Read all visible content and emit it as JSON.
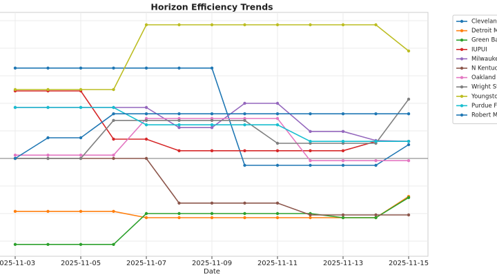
{
  "chart_data": {
    "type": "line",
    "title": "Horizon Efficiency Trends",
    "xlabel": "Date",
    "x": [
      "2025-11-03",
      "2025-11-04",
      "2025-11-05",
      "2025-11-06",
      "2025-11-07",
      "2025-11-08",
      "2025-11-09",
      "2025-11-10",
      "2025-11-11",
      "2025-11-12",
      "2025-11-13",
      "2025-11-14",
      "2025-11-15"
    ],
    "xlim": [
      "2025-11-03",
      "2025-11-15"
    ],
    "xticks": [
      "2025-11-03",
      "2025-11-05",
      "2025-11-07",
      "2025-11-09",
      "2025-11-11",
      "2025-11-13",
      "2025-11-15"
    ],
    "ylim": [
      -17.75,
      26.5
    ],
    "yticks": [
      -15,
      -10,
      -5,
      0,
      5,
      10,
      15,
      20,
      25
    ],
    "reference_line": 0,
    "grid": true,
    "legend": "outside-right",
    "series": [
      {
        "name": "Clevelanc",
        "color": "#1f77b4",
        "values": [
          16.4,
          16.4,
          16.4,
          16.4,
          16.4,
          16.4,
          16.4,
          -1.25,
          -1.25,
          -1.25,
          -1.25,
          -1.25,
          2.5
        ]
      },
      {
        "name": "Detroit M",
        "color": "#ff7f0e",
        "values": [
          -9.6,
          -9.6,
          -9.6,
          -9.6,
          -10.75,
          -10.75,
          -10.75,
          -10.75,
          -10.75,
          -10.75,
          -10.75,
          -10.75,
          -6.9
        ]
      },
      {
        "name": "Green Ba",
        "color": "#2ca02c",
        "values": [
          -15.6,
          -15.6,
          -15.6,
          -15.6,
          -10,
          -10,
          -10,
          -10,
          -10,
          -10,
          -10.75,
          -10.75,
          -7.1
        ]
      },
      {
        "name": "IUPUI",
        "color": "#d62728",
        "values": [
          12.25,
          12.25,
          12.25,
          3.5,
          3.5,
          1.4,
          1.4,
          1.4,
          1.4,
          1.4,
          1.4,
          3.1,
          3.1
        ]
      },
      {
        "name": "Milwauke",
        "color": "#9467bd",
        "values": [
          9.25,
          9.25,
          9.25,
          9.25,
          9.25,
          5.6,
          5.6,
          10,
          10,
          4.9,
          4.9,
          3.25,
          3.1
        ]
      },
      {
        "name": "N Kentuc",
        "color": "#8c564b",
        "values": [
          0,
          0,
          0,
          0,
          0,
          -8.1,
          -8.1,
          -8.1,
          -8.1,
          -10.25,
          -10.25,
          -10.25,
          -10.25
        ]
      },
      {
        "name": "Oakland",
        "color": "#e377c2",
        "values": [
          0.6,
          0.6,
          0.6,
          0.6,
          7.25,
          7.25,
          7.25,
          7.25,
          7.25,
          -0.4,
          -0.4,
          -0.4,
          -0.4
        ]
      },
      {
        "name": "Wright St",
        "color": "#7f7f7f",
        "values": [
          0,
          0,
          0,
          6.9,
          6.9,
          6.9,
          6.9,
          6.9,
          2.75,
          2.75,
          2.75,
          2.75,
          10.75
        ]
      },
      {
        "name": "Youngsto",
        "color": "#bcbd22",
        "values": [
          12.5,
          12.5,
          12.5,
          12.5,
          24.25,
          24.25,
          24.25,
          24.25,
          24.25,
          24.25,
          24.25,
          24.25,
          19.5
        ]
      },
      {
        "name": "Purdue Fo",
        "color": "#17becf",
        "values": [
          9.25,
          9.25,
          9.25,
          9.25,
          6.1,
          6.1,
          6.1,
          6.1,
          6.1,
          3.1,
          3.1,
          3.1,
          3.1
        ]
      },
      {
        "name": "Robert M",
        "color": "#1f77b4",
        "values": [
          0,
          3.75,
          3.75,
          8.1,
          8.1,
          8.1,
          8.1,
          8.1,
          8.1,
          8.1,
          8.1,
          8.1,
          8.1
        ]
      }
    ]
  }
}
